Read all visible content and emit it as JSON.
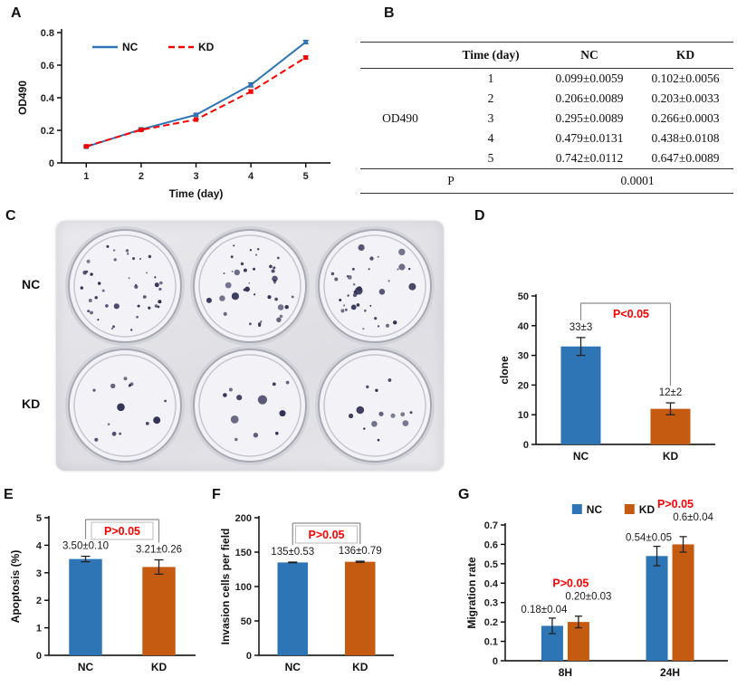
{
  "panel_labels": {
    "A": "A",
    "B": "B",
    "C": "C",
    "D": "D",
    "E": "E",
    "F": "F",
    "G": "G"
  },
  "colors": {
    "nc_blue": "#2E75B6",
    "kd_orange": "#C55A11",
    "kd_line_red": "#FF0000",
    "p_red": "#FF0000",
    "colony": "#2D2D52"
  },
  "table_b": {
    "col_headers": [
      "Time (day)",
      "NC",
      "KD"
    ],
    "row_group_label": "OD490",
    "rows": [
      {
        "time": "1",
        "nc": "0.099±0.0059",
        "kd": "0.102±0.0056"
      },
      {
        "time": "2",
        "nc": "0.206±0.0089",
        "kd": "0.203±0.0033"
      },
      {
        "time": "3",
        "nc": "0.295±0.0089",
        "kd": "0.266±0.0003"
      },
      {
        "time": "4",
        "nc": "0.479±0.0131",
        "kd": "0.438±0.0108"
      },
      {
        "time": "5",
        "nc": "0.742±0.0112",
        "kd": "0.647±0.0089"
      }
    ],
    "p_label": "P",
    "p_value": "0.0001"
  },
  "plate_c": {
    "rows": [
      {
        "label": "NC",
        "approx_colonies_per_well": [
          40,
          38,
          36
        ]
      },
      {
        "label": "KD",
        "approx_colonies_per_well": [
          14,
          11,
          13
        ]
      }
    ]
  },
  "chart_data": [
    {
      "id": "A",
      "type": "line",
      "x": [
        1,
        2,
        3,
        4,
        5
      ],
      "xlabel": "Time (day)",
      "ylabel": "OD490",
      "ylim": [
        0,
        0.8
      ],
      "yticks": [
        0,
        0.2,
        0.4,
        0.6,
        0.8
      ],
      "legend_position": "top",
      "series": [
        {
          "name": "NC",
          "color": "#2E75B6",
          "dashed": false,
          "values": [
            0.099,
            0.206,
            0.295,
            0.479,
            0.742
          ],
          "errors": [
            0.0059,
            0.0089,
            0.0089,
            0.0131,
            0.0112
          ]
        },
        {
          "name": "KD",
          "color": "#FF0000",
          "dashed": true,
          "values": [
            0.102,
            0.203,
            0.266,
            0.438,
            0.647
          ],
          "errors": [
            0.0056,
            0.0033,
            0.0003,
            0.0108,
            0.0089
          ]
        }
      ]
    },
    {
      "id": "D",
      "type": "bar",
      "ylabel": "clone",
      "ylim": [
        0,
        50
      ],
      "yticks": [
        0,
        10,
        20,
        30,
        40,
        50
      ],
      "categories": [
        "NC",
        "KD"
      ],
      "values": [
        33,
        12
      ],
      "errors": [
        3,
        2
      ],
      "bar_colors": [
        "#2E75B6",
        "#C55A11"
      ],
      "value_labels": [
        "33±3",
        "12±2"
      ],
      "p_label": "P<0.05"
    },
    {
      "id": "E",
      "type": "bar",
      "ylabel": "Apoptosis (%)",
      "ylim": [
        0,
        5
      ],
      "yticks": [
        0,
        1,
        2,
        3,
        4,
        5
      ],
      "categories": [
        "NC",
        "KD"
      ],
      "values": [
        3.5,
        3.21
      ],
      "errors": [
        0.1,
        0.26
      ],
      "bar_colors": [
        "#2E75B6",
        "#C55A11"
      ],
      "value_labels": [
        "3.50±0.10",
        "3.21±0.26"
      ],
      "p_label": "P>0.05"
    },
    {
      "id": "F",
      "type": "bar",
      "ylabel": "Invasion cells per field",
      "ylim": [
        0,
        200
      ],
      "yticks": [
        0,
        50,
        100,
        150,
        200
      ],
      "categories": [
        "NC",
        "KD"
      ],
      "values": [
        135,
        136
      ],
      "errors": [
        0.53,
        0.79
      ],
      "bar_colors": [
        "#2E75B6",
        "#C55A11"
      ],
      "value_labels": [
        "135±0.53",
        "136±0.79"
      ],
      "p_label": "P>0.05"
    },
    {
      "id": "G",
      "type": "grouped_bar",
      "ylabel": "Migration rate",
      "ylim": [
        0,
        0.7
      ],
      "yticks": [
        0,
        0.1,
        0.2,
        0.3,
        0.4,
        0.5,
        0.6,
        0.7
      ],
      "categories": [
        "8H",
        "24H"
      ],
      "legend_position": "top",
      "series": [
        {
          "name": "NC",
          "color": "#2E75B6",
          "values": [
            0.18,
            0.54
          ],
          "errors": [
            0.04,
            0.05
          ]
        },
        {
          "name": "KD",
          "color": "#C55A11",
          "values": [
            0.2,
            0.6
          ],
          "errors": [
            0.03,
            0.04
          ]
        }
      ],
      "value_labels": [
        [
          "0.18±0.04",
          "0.54±0.05"
        ],
        [
          "0.20±0.03",
          "0.6±0.04"
        ]
      ],
      "p_labels": [
        "P>0.05",
        "P>0.05"
      ]
    }
  ]
}
